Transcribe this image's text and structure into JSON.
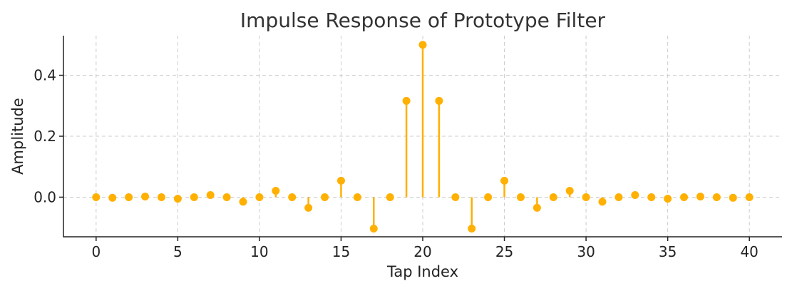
{
  "chart_data": {
    "type": "stem",
    "title": "Impulse Response of Prototype Filter",
    "xlabel": "Tap Index",
    "ylabel": "Amplitude",
    "xlim": [
      -2,
      42
    ],
    "ylim": [
      -0.13,
      0.53
    ],
    "xticks": [
      0,
      5,
      10,
      15,
      20,
      25,
      30,
      35,
      40
    ],
    "yticks": [
      0.0,
      0.2,
      0.4
    ],
    "ytick_labels": [
      "0.0",
      "0.2",
      "0.4"
    ],
    "grid": true,
    "color": "#FFB000",
    "x": [
      0,
      1,
      2,
      3,
      4,
      5,
      6,
      7,
      8,
      9,
      10,
      11,
      12,
      13,
      14,
      15,
      16,
      17,
      18,
      19,
      20,
      21,
      22,
      23,
      24,
      25,
      26,
      27,
      28,
      29,
      30,
      31,
      32,
      33,
      34,
      35,
      36,
      37,
      38,
      39,
      40
    ],
    "values": [
      0.0,
      -0.002,
      0.0,
      0.002,
      0.0,
      -0.005,
      0.0,
      0.007,
      0.0,
      -0.015,
      0.0,
      0.021,
      0.0,
      -0.035,
      0.0,
      0.054,
      0.0,
      -0.103,
      0.0,
      0.316,
      0.5,
      0.316,
      0.0,
      -0.103,
      0.0,
      0.054,
      0.0,
      -0.035,
      0.0,
      0.021,
      0.0,
      -0.015,
      0.0,
      0.007,
      0.0,
      -0.005,
      0.0,
      0.002,
      0.0,
      -0.002,
      0.0
    ]
  }
}
